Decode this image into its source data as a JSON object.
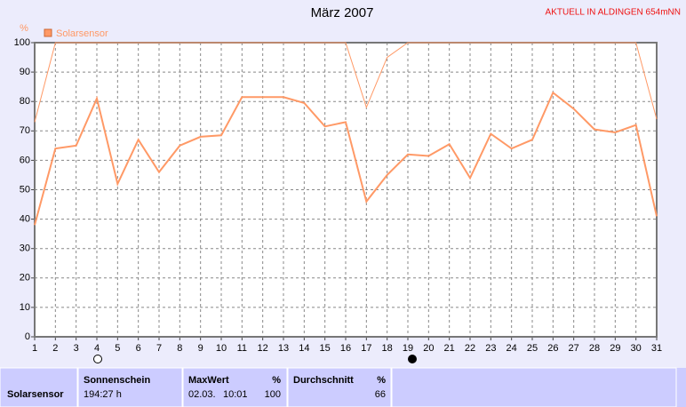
{
  "chart_data": {
    "type": "line",
    "title": "März 2007",
    "annotation": "AKTUELL IN ALDINGEN 654mNN",
    "y_label": "%",
    "x": [
      1,
      2,
      3,
      4,
      5,
      6,
      7,
      8,
      9,
      10,
      11,
      12,
      13,
      14,
      15,
      16,
      17,
      18,
      19,
      20,
      21,
      22,
      23,
      24,
      25,
      26,
      27,
      28,
      29,
      30,
      31
    ],
    "xlim": [
      1,
      31
    ],
    "xticks": [
      1,
      2,
      3,
      4,
      5,
      6,
      7,
      8,
      9,
      10,
      11,
      12,
      13,
      14,
      15,
      16,
      17,
      18,
      19,
      20,
      21,
      22,
      23,
      24,
      25,
      26,
      27,
      28,
      29,
      30,
      31
    ],
    "ylim": [
      0,
      100
    ],
    "yticks": [
      0,
      10,
      20,
      30,
      40,
      50,
      60,
      70,
      80,
      90,
      100
    ],
    "grid": true,
    "series": [
      {
        "name": "Solarsensor",
        "color": "#ff9966",
        "values": [
          38,
          64,
          65,
          81,
          52,
          67,
          56,
          65,
          68,
          68.5,
          81.5,
          81.5,
          81.5,
          79.5,
          71.5,
          73,
          46,
          55,
          62,
          61.5,
          65.5,
          54,
          69,
          64,
          67,
          83,
          77.5,
          70.5,
          69.5,
          72,
          41
        ]
      },
      {
        "color": "#ff9966",
        "values": [
          73,
          100,
          100,
          100,
          100,
          100,
          100,
          100,
          100,
          100,
          100,
          100,
          100,
          100,
          100,
          100,
          78,
          95,
          100,
          100,
          100,
          100,
          100,
          100,
          100,
          100,
          100,
          100,
          100,
          100,
          74
        ]
      }
    ]
  },
  "table": {
    "row_label": "Solarsensor",
    "columns": [
      {
        "header": "Sonnenschein",
        "value": "194:27 h"
      },
      {
        "header": "MaxWert",
        "unit": "%",
        "date": "02.03.",
        "time": "10:01",
        "value": "100"
      },
      {
        "header": "Durchschnitt",
        "unit": "%",
        "value": "66"
      }
    ]
  }
}
